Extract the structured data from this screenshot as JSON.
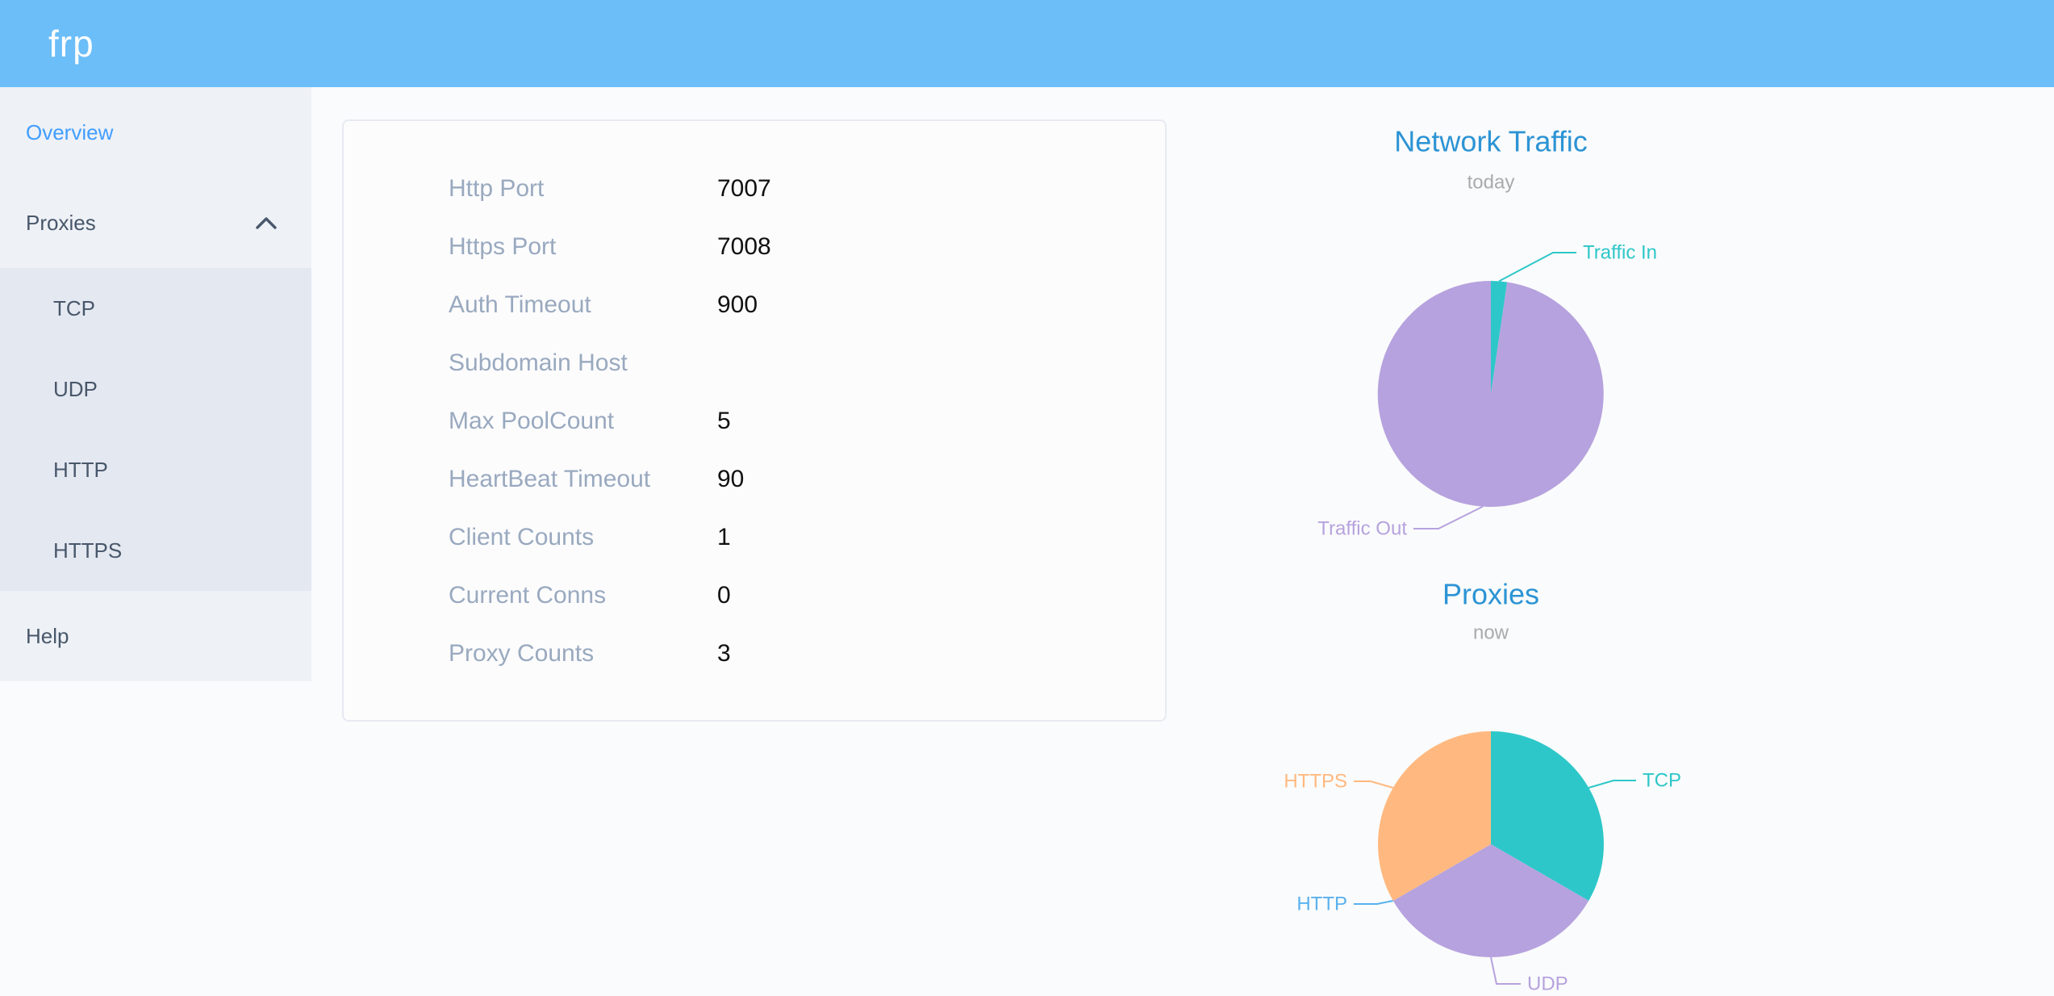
{
  "app": {
    "logo_text": "frp"
  },
  "colors": {
    "header_bg": "#6cbef8",
    "logo_text": "#ffffff",
    "sidebar_bg": "#eef1f6",
    "submenu_bg": "#e4e8f1",
    "menu_text": "#48576a",
    "active_menu_text": "#409eff",
    "card_border": "#e8eaf3",
    "card_label": "#99a9bf",
    "card_value": "#111111",
    "chart_title": "#2c94d4",
    "chart_subtitle": "#aaaaaa",
    "palette": [
      "#2ec7c9",
      "#b6a2de",
      "#5ab1ef",
      "#ffb980"
    ]
  },
  "sidebar": {
    "items": [
      {
        "label": "Overview",
        "active": true
      },
      {
        "label": "Proxies",
        "expanded": true
      },
      {
        "label": "Help",
        "active": false
      }
    ],
    "proxies_children": [
      {
        "label": "TCP"
      },
      {
        "label": "UDP"
      },
      {
        "label": "HTTP"
      },
      {
        "label": "HTTPS"
      }
    ]
  },
  "overview_card": {
    "rows": [
      {
        "label": "Http Port",
        "value": "7007"
      },
      {
        "label": "Https Port",
        "value": "7008"
      },
      {
        "label": "Auth Timeout",
        "value": "900"
      },
      {
        "label": "Subdomain Host",
        "value": ""
      },
      {
        "label": "Max PoolCount",
        "value": "5"
      },
      {
        "label": "HeartBeat Timeout",
        "value": "90"
      },
      {
        "label": "Client Counts",
        "value": "1"
      },
      {
        "label": "Current Conns",
        "value": "0"
      },
      {
        "label": "Proxy Counts",
        "value": "3"
      }
    ]
  },
  "chart_data": [
    {
      "type": "pie",
      "title": "Network Traffic",
      "subtitle": "today",
      "slices": [
        {
          "label": "Traffic In",
          "value": 2.3,
          "color": "#2ec7c9"
        },
        {
          "label": "Traffic Out",
          "value": 97.7,
          "color": "#b6a2de"
        }
      ],
      "values_note": "no numeric labels shown; values are estimated percent of pie area",
      "start_angle": "12 o'clock, clockwise",
      "legend_position": "none",
      "label_style": "outside labels with leader lines, colored like slices"
    },
    {
      "type": "pie",
      "title": "Proxies",
      "subtitle": "now",
      "slices": [
        {
          "label": "TCP",
          "value": 1,
          "color": "#2ec7c9"
        },
        {
          "label": "UDP",
          "value": 1,
          "color": "#b6a2de"
        },
        {
          "label": "HTTP",
          "value": 0,
          "color": "#5ab1ef"
        },
        {
          "label": "HTTPS",
          "value": 1,
          "color": "#ffb980"
        }
      ],
      "values_note": "proxy counts per type; total matches Proxy Counts = 3; HTTP slice is zero-sized but labeled",
      "start_angle": "12 o'clock, clockwise",
      "legend_position": "none",
      "label_style": "outside labels with leader lines, colored like slices"
    }
  ]
}
